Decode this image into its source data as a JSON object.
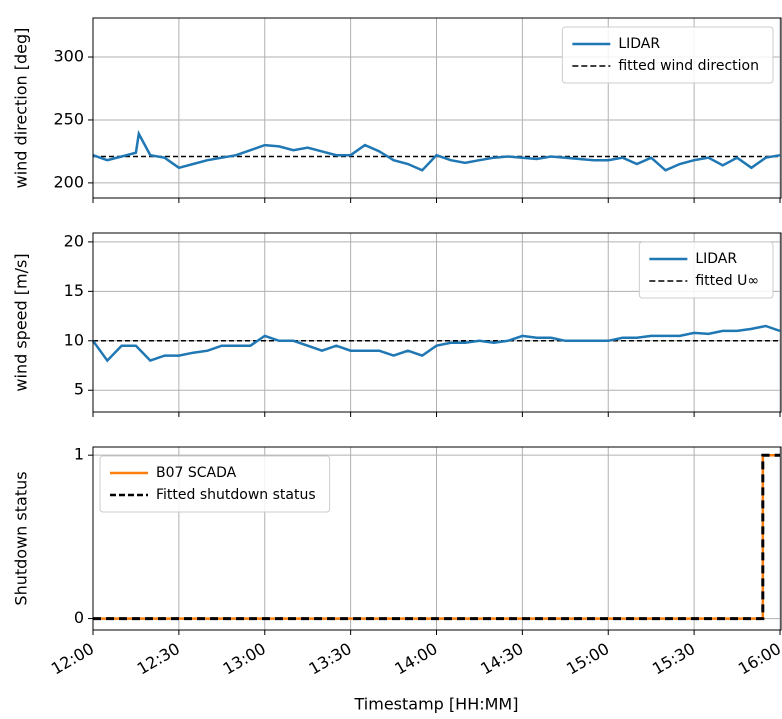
{
  "chart_data": [
    {
      "type": "line",
      "ylabel": "wind direction [deg]",
      "x": [
        "12:00",
        "12:05",
        "12:10",
        "12:15",
        "12:16",
        "12:20",
        "12:25",
        "12:30",
        "12:35",
        "12:40",
        "12:45",
        "12:50",
        "12:55",
        "13:00",
        "13:05",
        "13:10",
        "13:15",
        "13:20",
        "13:25",
        "13:30",
        "13:35",
        "13:40",
        "13:45",
        "13:50",
        "13:55",
        "14:00",
        "14:05",
        "14:10",
        "14:15",
        "14:20",
        "14:25",
        "14:30",
        "14:35",
        "14:40",
        "14:45",
        "14:50",
        "14:55",
        "15:00",
        "15:05",
        "15:10",
        "15:15",
        "15:20",
        "15:25",
        "15:30",
        "15:35",
        "15:40",
        "15:45",
        "15:50",
        "15:55",
        "16:00"
      ],
      "series": [
        {
          "name": "LIDAR",
          "color": "#1f77b4",
          "values": [
            222,
            218,
            221,
            224,
            239,
            222,
            220,
            212,
            215,
            218,
            220,
            222,
            226,
            230,
            229,
            226,
            228,
            225,
            222,
            222,
            230,
            225,
            218,
            215,
            210,
            222,
            218,
            216,
            218,
            220,
            221,
            220,
            219,
            221,
            220,
            219,
            218,
            218,
            220,
            215,
            220,
            210,
            215,
            218,
            220,
            214,
            220,
            212,
            220,
            222
          ]
        }
      ],
      "hlines": [
        {
          "name": "fitted wind direction",
          "value": 221,
          "color": "#000000"
        }
      ],
      "xlim": [
        "12:00",
        "16:00"
      ],
      "xticks": [
        "12:00",
        "12:30",
        "13:00",
        "13:30",
        "14:00",
        "14:30",
        "15:00",
        "15:30",
        "16:00"
      ],
      "xtick_labels": false,
      "ylim": [
        188,
        331
      ],
      "yticks": [
        200,
        250,
        300
      ],
      "grid": true,
      "legend": "upper right"
    },
    {
      "type": "line",
      "ylabel": "wind speed [m/s]",
      "x": [
        "12:00",
        "12:05",
        "12:10",
        "12:15",
        "12:20",
        "12:25",
        "12:30",
        "12:35",
        "12:40",
        "12:45",
        "12:50",
        "12:55",
        "13:00",
        "13:05",
        "13:10",
        "13:15",
        "13:20",
        "13:25",
        "13:30",
        "13:35",
        "13:40",
        "13:45",
        "13:50",
        "13:55",
        "14:00",
        "14:05",
        "14:10",
        "14:15",
        "14:20",
        "14:25",
        "14:30",
        "14:35",
        "14:40",
        "14:45",
        "14:50",
        "14:55",
        "15:00",
        "15:05",
        "15:10",
        "15:15",
        "15:20",
        "15:25",
        "15:30",
        "15:35",
        "15:40",
        "15:45",
        "15:50",
        "15:55",
        "16:00"
      ],
      "series": [
        {
          "name": "LIDAR",
          "color": "#1f77b4",
          "values": [
            10,
            8,
            9.5,
            9.5,
            8,
            8.5,
            8.5,
            8.8,
            9,
            9.5,
            9.5,
            9.5,
            10.5,
            10,
            10,
            9.5,
            9,
            9.5,
            9,
            9,
            9,
            8.5,
            9,
            8.5,
            9.5,
            9.8,
            9.8,
            10,
            9.8,
            10,
            10.5,
            10.3,
            10.3,
            10,
            10,
            10,
            10,
            10.3,
            10.3,
            10.5,
            10.5,
            10.5,
            10.8,
            10.7,
            11,
            11,
            11.2,
            11.5,
            11
          ]
        }
      ],
      "hlines": [
        {
          "name": "fitted U∞",
          "value": 10,
          "color": "#000000"
        }
      ],
      "xlim": [
        "12:00",
        "16:00"
      ],
      "xticks": [
        "12:00",
        "12:30",
        "13:00",
        "13:30",
        "14:00",
        "14:30",
        "15:00",
        "15:30",
        "16:00"
      ],
      "xtick_labels": false,
      "ylim": [
        2.8,
        20.9
      ],
      "yticks": [
        5,
        10,
        15,
        20
      ],
      "grid": true,
      "legend": "upper right"
    },
    {
      "type": "line",
      "ylabel": "Shutdown status",
      "xlabel": "Timestamp [HH:MM]",
      "x": [
        "12:00",
        "15:54",
        "15:54",
        "16:00"
      ],
      "series": [
        {
          "name": "B07 SCADA",
          "color": "#ff7f0e",
          "values": [
            0,
            0,
            1,
            1
          ]
        },
        {
          "name": "Fitted shutdown status",
          "color": "#000000",
          "dashed": true,
          "values": [
            0,
            0,
            1,
            1
          ]
        }
      ],
      "xlim": [
        "12:00",
        "16:00"
      ],
      "xticks": [
        "12:00",
        "12:30",
        "13:00",
        "13:30",
        "14:00",
        "14:30",
        "15:00",
        "15:30",
        "16:00"
      ],
      "xtick_labels": true,
      "ylim": [
        -0.07,
        1.05
      ],
      "yticks": [
        0,
        1
      ],
      "grid": true,
      "legend": "upper left"
    }
  ]
}
